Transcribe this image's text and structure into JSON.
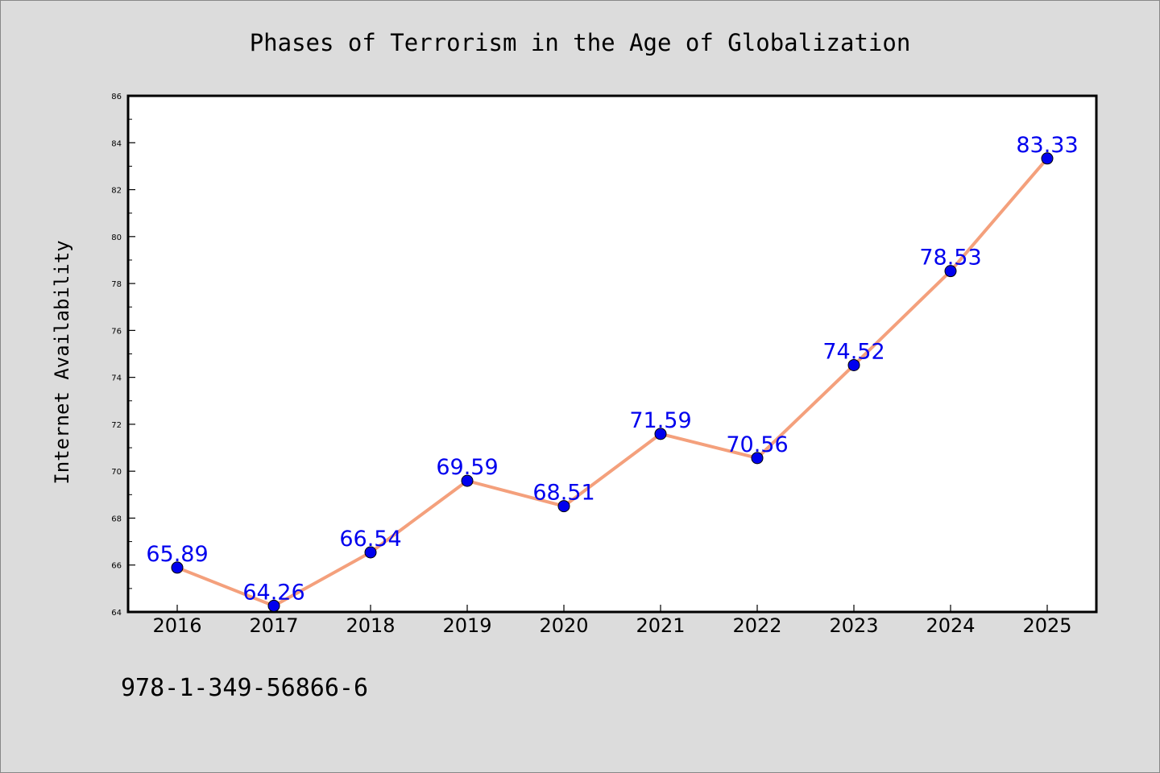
{
  "chart_data": {
    "type": "line",
    "title": "Phases of Terrorism in the Age of Globalization",
    "xlabel": "",
    "ylabel": "Internet Availability",
    "x": [
      "2016",
      "2017",
      "2018",
      "2019",
      "2020",
      "2021",
      "2022",
      "2023",
      "2024",
      "2025"
    ],
    "series": [
      {
        "values": [
          65.89,
          64.26,
          66.54,
          69.59,
          68.51,
          71.59,
          70.56,
          74.52,
          78.53,
          83.33
        ],
        "data_labels": [
          "65.89",
          "64.26",
          "66.54",
          "69.59",
          "68.51",
          "71.59",
          "70.56",
          "74.52",
          "78.53",
          "83.33"
        ]
      }
    ],
    "ylim": [
      64,
      86
    ],
    "yticks": [
      "64",
      "66",
      "68",
      "70",
      "72",
      "74",
      "76",
      "78",
      "80",
      "82",
      "84",
      "86"
    ],
    "grid": false,
    "legend": "none",
    "line_color": "#f4a07c",
    "marker_color": "#0000ee",
    "label_color": "#0000ee"
  },
  "footer": {
    "isbn": "978-1-349-56866-6"
  }
}
